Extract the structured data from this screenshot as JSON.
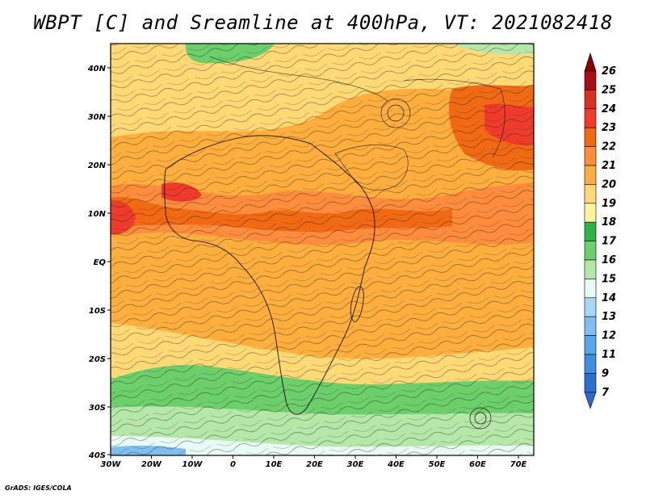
{
  "title": "WBPT [C] and Sreamline at 400hPa, VT: 2021082418",
  "footer": "GrADS: IGES/COLA",
  "lat_ticks": [
    "40N",
    "30N",
    "20N",
    "10N",
    "EQ",
    "10S",
    "20S",
    "30S",
    "40S"
  ],
  "lon_ticks": [
    "30W",
    "20W",
    "10W",
    "0",
    "10E",
    "20E",
    "30E",
    "40E",
    "50E",
    "60E",
    "70E"
  ],
  "colorbar": {
    "labels": [
      "26",
      "25",
      "24",
      "23",
      "22",
      "21",
      "20",
      "19",
      "18",
      "17",
      "16",
      "15",
      "14",
      "13",
      "12",
      "11",
      "9",
      "7"
    ],
    "bins": [
      {
        "value": "25",
        "color": "#a50f15"
      },
      {
        "value": "24",
        "color": "#d7301f"
      },
      {
        "value": "23",
        "color": "#ef3b2c"
      },
      {
        "value": "22",
        "color": "#f16913"
      },
      {
        "value": "21",
        "color": "#fd8d3c"
      },
      {
        "value": "20",
        "color": "#fdae3c"
      },
      {
        "value": "19",
        "color": "#fed976"
      },
      {
        "value": "18",
        "color": "#fff3a0"
      },
      {
        "value": "17",
        "color": "#2eb34a"
      },
      {
        "value": "16",
        "color": "#6ccf6a"
      },
      {
        "value": "15",
        "color": "#b5e8a8"
      },
      {
        "value": "14",
        "color": "#e8fbf5"
      },
      {
        "value": "13",
        "color": "#a8d6f5"
      },
      {
        "value": "12",
        "color": "#7fbef0"
      },
      {
        "value": "11",
        "color": "#5aa6ea"
      },
      {
        "value": "9",
        "color": "#3f8ee0"
      },
      {
        "value": "7",
        "color": "#2c6fd1"
      }
    ],
    "top_color": "#8b0000",
    "bottom_color": "#2e66cc"
  }
}
